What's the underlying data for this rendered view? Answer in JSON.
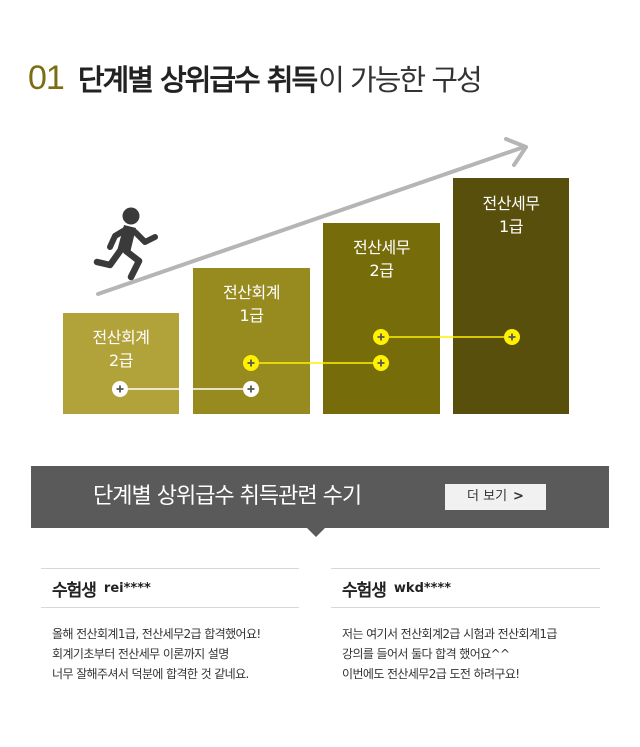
{
  "section": {
    "number": "01",
    "title_bold": "단계별 상위급수 취득",
    "title_light": "이 가능한 구성"
  },
  "steps": [
    {
      "line1": "전산회계",
      "line2": "2급",
      "color": "#b2a23a"
    },
    {
      "line1": "전산회계",
      "line2": "1급",
      "color": "#978b1f"
    },
    {
      "line1": "전산세무",
      "line2": "2급",
      "color": "#776c0a"
    },
    {
      "line1": "전산세무",
      "line2": "1급",
      "color": "#584f0c"
    }
  ],
  "colors": {
    "accent": "#7a6d12",
    "connector_white": "#ffffff",
    "connector_yellow": "#fff200",
    "banner_bg": "#5a5a5a"
  },
  "icons": [
    "runner-icon",
    "arrow-icon",
    "plus-icon"
  ],
  "banner": {
    "title": "단계별 상위급수 취득관련 수기",
    "more_label": "더 보기",
    "more_chevron": ">"
  },
  "reviews": [
    {
      "who": "수험생",
      "id": "rei****",
      "lines": [
        "올해 전산회계1급, 전산세무2급 합격했어요!",
        "회계기초부터 전산세무 이론까지 설명",
        "너무 잘해주셔서 덕분에 합격한 것 같네요."
      ]
    },
    {
      "who": "수험생",
      "id": "wkd****",
      "lines": [
        "저는 여기서 전산회계2급 시험과 전산회계1급",
        "강의를 들어서 둘다 합격 했어요^^",
        "이번에도 전산세무2급 도전 하려구요!"
      ]
    }
  ]
}
